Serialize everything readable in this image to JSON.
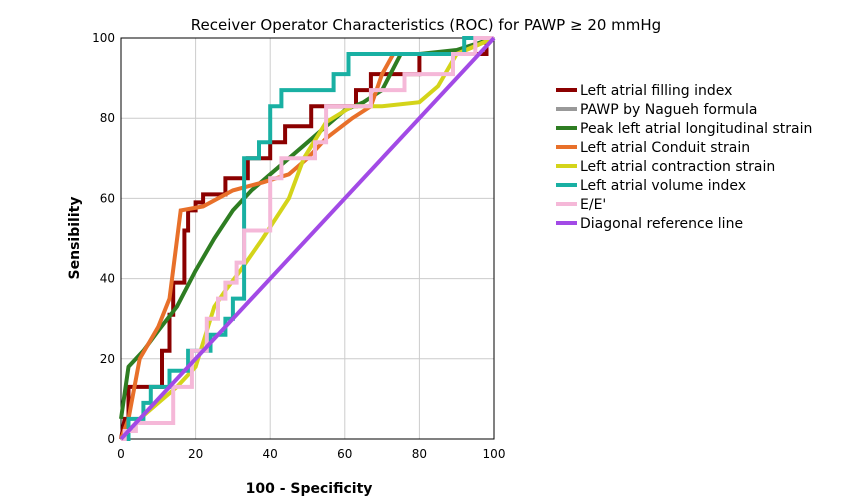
{
  "chart_data": {
    "type": "line",
    "title": "Receiver Operator Characteristics (ROC) for PAWP ≥ 20 mmHg",
    "xlabel": "100 - Specificity",
    "ylabel": "Sensibility",
    "xlim": [
      0,
      100
    ],
    "ylim": [
      0,
      100
    ],
    "xticks": [
      "0",
      "20",
      "40",
      "60",
      "80",
      "100"
    ],
    "yticks": [
      "0",
      "20",
      "40",
      "60",
      "80",
      "100"
    ],
    "grid": true,
    "legend_position": "right",
    "series": [
      {
        "name": "Left atrial filling index",
        "color": "#8b0000",
        "step": true,
        "x": [
          0,
          1,
          2,
          2,
          11,
          11,
          13,
          13,
          14,
          14,
          17,
          17,
          18,
          18,
          20,
          20,
          22,
          22,
          28,
          28,
          34,
          34,
          40,
          40,
          44,
          44,
          51,
          51,
          63,
          63,
          67,
          67,
          75,
          75,
          80,
          80,
          95,
          95,
          98,
          98,
          100
        ],
        "y": [
          0,
          5,
          5,
          13,
          13,
          22,
          22,
          31,
          31,
          39,
          39,
          52,
          52,
          57,
          57,
          59,
          59,
          61,
          61,
          65,
          65,
          70,
          70,
          74,
          74,
          78,
          78,
          83,
          83,
          87,
          87,
          91,
          91,
          91,
          91,
          96,
          96,
          96,
          96,
          100,
          100
        ]
      },
      {
        "name": "PAWP by Nagueh formula",
        "color": "#999999",
        "step": false,
        "x": [],
        "y": []
      },
      {
        "name": "Peak left atrial longitudinal strain",
        "color": "#2e7d22",
        "step": false,
        "x": [
          0,
          2,
          6,
          10,
          15,
          20,
          25,
          30,
          35,
          40,
          45,
          50,
          55,
          60,
          65,
          70,
          75,
          80,
          90,
          100
        ],
        "y": [
          5,
          18,
          22,
          27,
          33,
          42,
          50,
          57,
          62,
          66,
          70,
          74,
          78,
          82,
          84,
          87,
          96,
          96,
          97,
          100
        ],
        "note_shape": "smooth"
      },
      {
        "name": "Left atrial Conduit strain",
        "color": "#e8702a",
        "step": false,
        "x": [
          0,
          2,
          5,
          10,
          13,
          16,
          22,
          30,
          38,
          45,
          50,
          55,
          62,
          67,
          70,
          73,
          80,
          90,
          100
        ],
        "y": [
          0,
          5,
          20,
          28,
          35,
          57,
          58,
          62,
          64,
          66,
          70,
          75,
          80,
          83,
          91,
          96,
          96,
          96,
          100
        ]
      },
      {
        "name": "Left atrial contraction strain",
        "color": "#d4d41a",
        "step": false,
        "x": [
          0,
          5,
          10,
          15,
          20,
          25,
          28,
          32,
          38,
          45,
          49,
          55,
          62,
          70,
          80,
          85,
          90,
          100
        ],
        "y": [
          0,
          5,
          9,
          13,
          18,
          33,
          37,
          42,
          50,
          60,
          70,
          79,
          83,
          83,
          84,
          88,
          96,
          100
        ]
      },
      {
        "name": "Left atrial volume index",
        "color": "#19b0a3",
        "step": true,
        "x": [
          0,
          2,
          2,
          6,
          6,
          8,
          8,
          13,
          13,
          18,
          18,
          24,
          24,
          28,
          28,
          30,
          30,
          33,
          33,
          37,
          37,
          40,
          40,
          43,
          43,
          49,
          49,
          57,
          57,
          61,
          61,
          68,
          68,
          85,
          85,
          92,
          92,
          97,
          97,
          100
        ],
        "y": [
          0,
          0,
          5,
          5,
          9,
          9,
          13,
          13,
          17,
          17,
          22,
          22,
          26,
          26,
          30,
          30,
          35,
          35,
          70,
          70,
          74,
          74,
          83,
          83,
          87,
          87,
          87,
          87,
          91,
          91,
          96,
          96,
          96,
          96,
          96,
          96,
          100,
          100,
          100,
          100
        ]
      },
      {
        "name": "E/E'",
        "color": "#f5b8d8",
        "step": true,
        "x": [
          0,
          1,
          1,
          4,
          4,
          14,
          14,
          19,
          19,
          23,
          23,
          26,
          26,
          28,
          28,
          31,
          31,
          33,
          33,
          36,
          36,
          40,
          40,
          43,
          43,
          52,
          52,
          55,
          55,
          67,
          67,
          76,
          76,
          89,
          89,
          95,
          95,
          100
        ],
        "y": [
          0,
          0,
          2,
          2,
          4,
          4,
          13,
          13,
          22,
          22,
          30,
          30,
          35,
          35,
          39,
          39,
          44,
          44,
          52,
          52,
          52,
          52,
          65,
          65,
          70,
          70,
          74,
          74,
          83,
          83,
          87,
          87,
          91,
          91,
          96,
          96,
          100,
          100
        ]
      },
      {
        "name": "Diagonal reference line",
        "color": "#a24ae6",
        "step": false,
        "x": [
          0,
          100
        ],
        "y": [
          0,
          100
        ]
      }
    ]
  }
}
